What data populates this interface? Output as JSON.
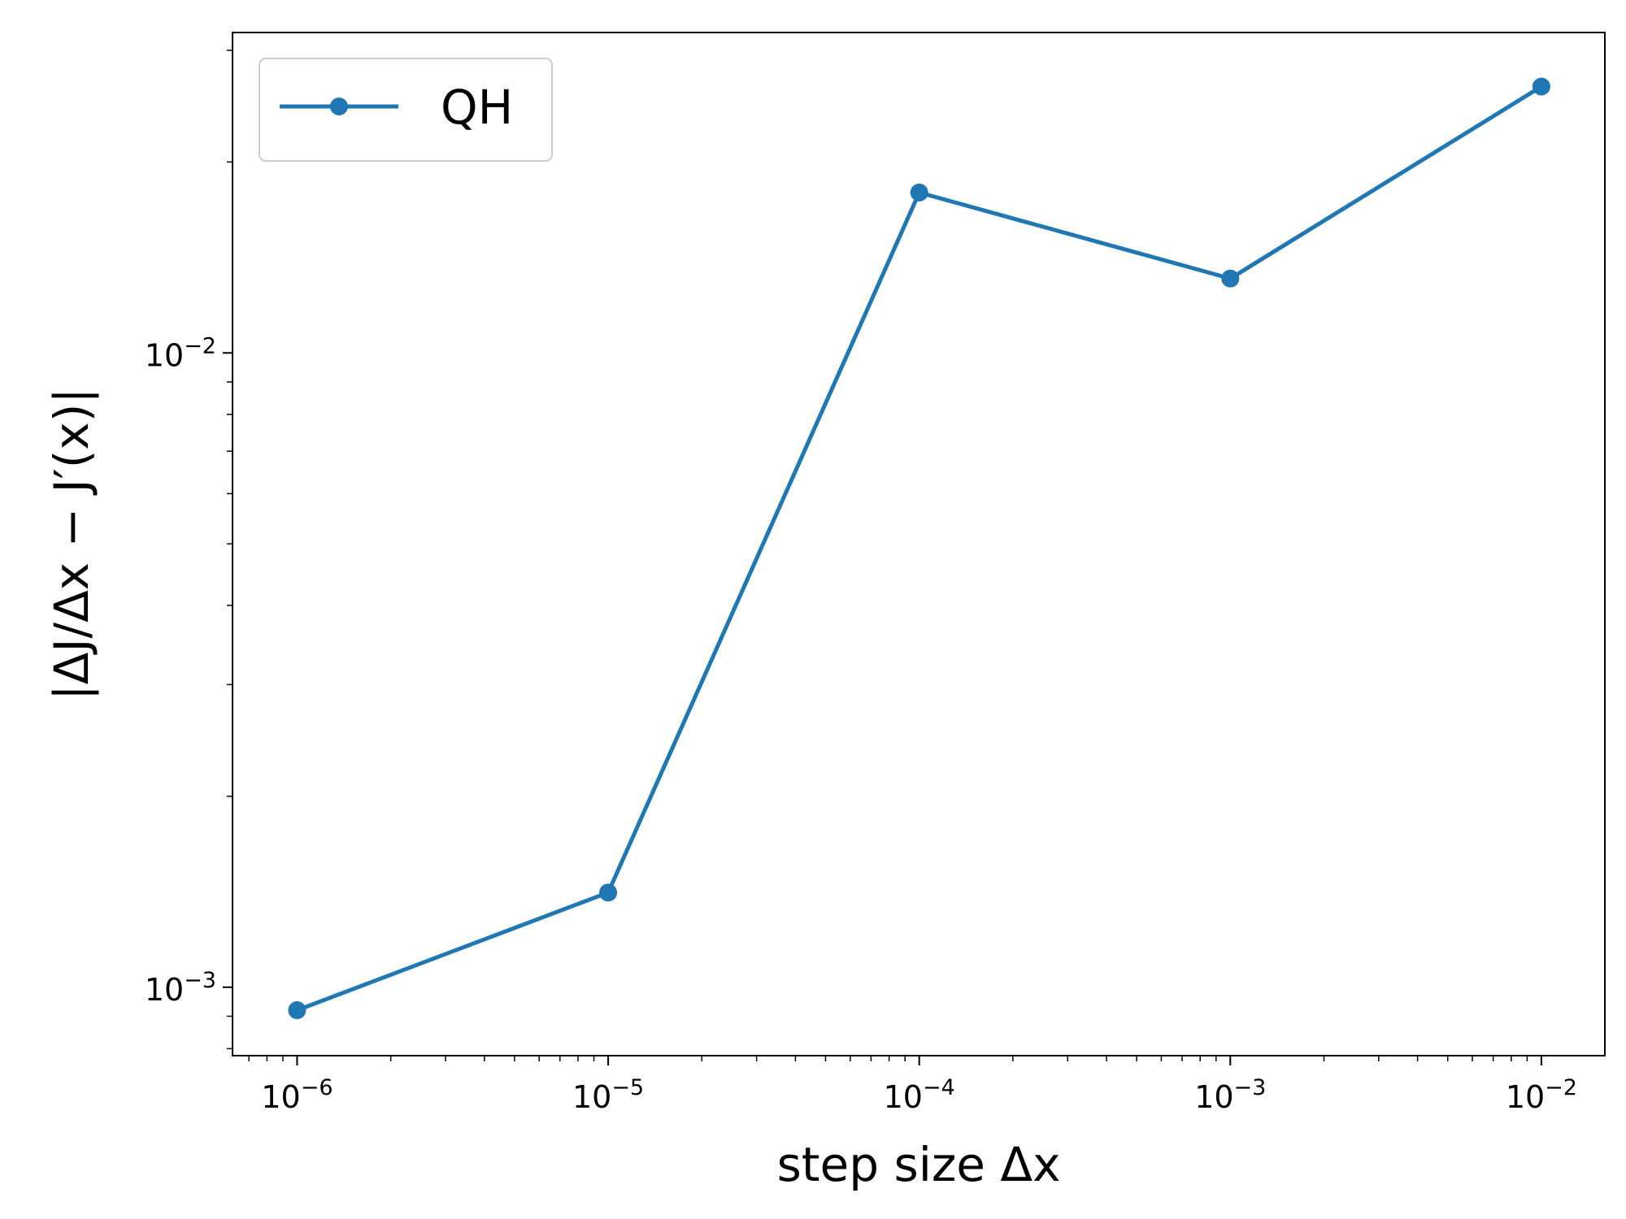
{
  "chart_data": {
    "type": "line",
    "xscale": "log",
    "yscale": "log",
    "xlabel": "step size Δx",
    "ylabel": "|ΔJ/Δx − J′(x)|",
    "xlim": [
      6.2e-07,
      0.016
    ],
    "ylim": [
      0.00078,
      0.032
    ],
    "x_ticks": [
      {
        "value": 1e-06,
        "exp": "−6"
      },
      {
        "value": 1e-05,
        "exp": "−5"
      },
      {
        "value": 0.0001,
        "exp": "−4"
      },
      {
        "value": 0.001,
        "exp": "−3"
      },
      {
        "value": 0.01,
        "exp": "−2"
      }
    ],
    "y_ticks": [
      {
        "value": 0.001,
        "exp": "−3"
      },
      {
        "value": 0.01,
        "exp": "−2"
      }
    ],
    "tick_base": "10",
    "series": [
      {
        "name": "QH",
        "color": "#1f77b4",
        "marker": "circle",
        "x": [
          1e-06,
          1e-05,
          0.0001,
          0.001,
          0.01
        ],
        "y": [
          0.00092,
          0.00141,
          0.0179,
          0.0131,
          0.0263
        ]
      }
    ],
    "legend_position": "top-left",
    "grid": false
  }
}
